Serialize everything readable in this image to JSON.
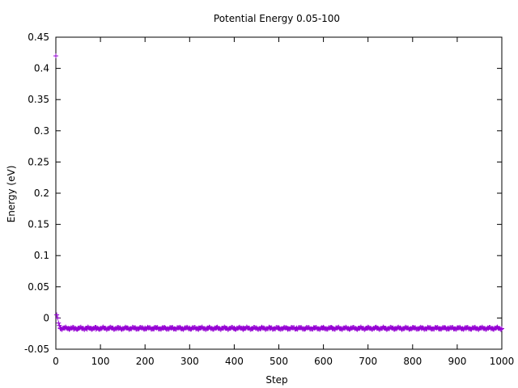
{
  "chart_data": {
    "type": "scatter",
    "title": "Potential Energy 0.05-100",
    "xlabel": "Step",
    "ylabel": "Energy (eV)",
    "xlim": [
      0,
      1000
    ],
    "ylim": [
      -0.05,
      0.45
    ],
    "xticks": [
      0,
      100,
      200,
      300,
      400,
      500,
      600,
      700,
      800,
      900,
      1000
    ],
    "xtick_labels": [
      "0",
      "100",
      "200",
      "300",
      "400",
      "500",
      "600",
      "700",
      "800",
      "900",
      "1000"
    ],
    "yticks": [
      -0.05,
      0,
      0.05,
      0.1,
      0.15,
      0.2,
      0.25,
      0.3,
      0.35,
      0.4,
      0.45
    ],
    "ytick_labels": [
      "-0.05",
      "0",
      "0.05",
      "0.1",
      "0.15",
      "0.2",
      "0.25",
      "0.3",
      "0.35",
      "0.4",
      "0.45"
    ],
    "grid": false,
    "marker": "plus",
    "color": "#9400d3",
    "series": [
      {
        "x": [
          0,
          2,
          4,
          6,
          8,
          10,
          20,
          30,
          40,
          50,
          60,
          70,
          80,
          90,
          100,
          120,
          140,
          160,
          180,
          200,
          220,
          240,
          260,
          280,
          300,
          320,
          340,
          360,
          380,
          400,
          420,
          440,
          460,
          480,
          500,
          520,
          540,
          560,
          580,
          600,
          620,
          640,
          660,
          680,
          700,
          720,
          740,
          760,
          780,
          800,
          820,
          840,
          860,
          880,
          900,
          920,
          940,
          960,
          980,
          1000
        ],
        "y": [
          0.42,
          0.005,
          0.0,
          -0.008,
          -0.012,
          -0.015,
          -0.016,
          -0.017,
          -0.018,
          -0.017,
          -0.017,
          -0.018,
          -0.017,
          -0.018,
          -0.017,
          -0.016,
          -0.017,
          -0.016,
          -0.017,
          -0.016,
          -0.016,
          -0.016,
          -0.016,
          -0.016,
          -0.016,
          -0.016,
          -0.017,
          -0.016,
          -0.016,
          -0.017,
          -0.016,
          -0.017,
          -0.017,
          -0.017,
          -0.017,
          -0.017,
          -0.016,
          -0.017,
          -0.016,
          -0.016,
          -0.016,
          -0.017,
          -0.017,
          -0.017,
          -0.016,
          -0.016,
          -0.017,
          -0.017,
          -0.017,
          -0.016,
          -0.017,
          -0.016,
          -0.017,
          -0.016,
          -0.016,
          -0.017,
          -0.016,
          -0.017,
          -0.017,
          -0.017
        ]
      }
    ]
  }
}
